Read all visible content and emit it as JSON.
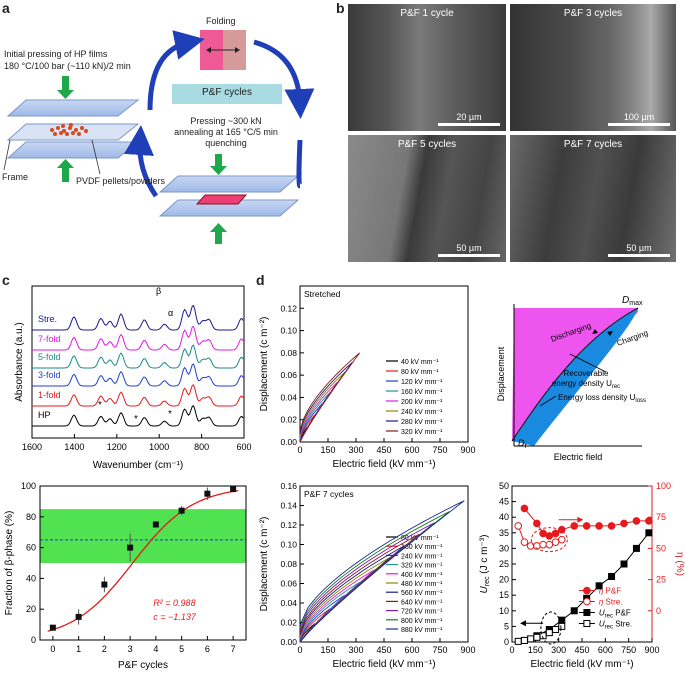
{
  "panel_labels": {
    "a": "a",
    "b": "b",
    "c": "c",
    "d": "d"
  },
  "panel_a": {
    "initial_pressing_line1": "Initial pressing of HP films",
    "initial_pressing_line2": "180 °C/100 bar (~110 kN)/2 min",
    "folding": "Folding",
    "pf_cycles": "P&F cycles",
    "pressing_line1": "Pressing ~300 kN",
    "pressing_line2": "annealing at 165 °C/5 min",
    "pressing_line3": "quenching",
    "frame": "Frame",
    "pvdf": "PVDF pellets/powders"
  },
  "panel_b": {
    "images": [
      {
        "label": "P&F 1 cycle",
        "scale": "20 µm"
      },
      {
        "label": "P&F 3 cycles",
        "scale": "100 µm"
      },
      {
        "label": "P&F 5 cycles",
        "scale": "50 µm"
      },
      {
        "label": "P&F 7 cycles",
        "scale": "50 µm"
      }
    ]
  },
  "panel_c_ftir": {
    "chart_data": {
      "type": "line",
      "xlabel": "Wavenumber (cm⁻¹)",
      "ylabel": "Absorbance (a.u.)",
      "xlim": [
        1600,
        600
      ],
      "x_ticks": [
        "1600",
        "1400",
        "1200",
        "1000",
        "800",
        "600"
      ],
      "series": [
        {
          "name": "HP",
          "color": "#000000"
        },
        {
          "name": "1-fold",
          "color": "#e41a1c"
        },
        {
          "name": "3-fold",
          "color": "#1f3fd1"
        },
        {
          "name": "5-fold",
          "color": "#1a8a8a"
        },
        {
          "name": "7-fold",
          "color": "#e31ae3"
        },
        {
          "name": "Stre.",
          "color": "#1a1a8c"
        }
      ],
      "annotations": [
        "β",
        "α",
        "*",
        "*",
        "*"
      ]
    }
  },
  "panel_c_fraction": {
    "chart_data": {
      "type": "scatter",
      "xlabel": "P&F cycles",
      "ylabel": "Fraction of β-phase (%)",
      "xlim": [
        -0.5,
        7.5
      ],
      "ylim": [
        0,
        100
      ],
      "x_ticks": [
        "0",
        "1",
        "2",
        "3",
        "4",
        "5",
        "6",
        "7"
      ],
      "y_ticks": [
        "0",
        "20",
        "40",
        "60",
        "80",
        "100"
      ],
      "x": [
        0,
        1,
        2,
        3,
        4,
        5,
        6,
        7
      ],
      "y": [
        8,
        15,
        36,
        60,
        75,
        84,
        95,
        98
      ],
      "fit_line": "red",
      "band": [
        50,
        85
      ],
      "band_color": "#33dd33",
      "dashed_line": 65,
      "annotation_r2": "R² = 0.988",
      "annotation_c": "c = −1.137"
    }
  },
  "panel_d_stretched": {
    "chart_data": {
      "type": "line",
      "title": "Stretched",
      "xlabel": "Electric field (kV mm⁻¹)",
      "ylabel": "Displacement (c m⁻²)",
      "xlim": [
        0,
        900
      ],
      "ylim": [
        0,
        0.14
      ],
      "x_ticks": [
        "0",
        "150",
        "300",
        "450",
        "600",
        "750",
        "900"
      ],
      "y_ticks": [
        "0.00",
        "0.02",
        "0.04",
        "0.06",
        "0.08",
        "0.10",
        "0.12"
      ],
      "legend": [
        {
          "name": "40 kV mm⁻¹",
          "color": "#000000"
        },
        {
          "name": "80 kV mm⁻¹",
          "color": "#e41a1c"
        },
        {
          "name": "120 kV mm⁻¹",
          "color": "#1f3fd1"
        },
        {
          "name": "160 kV mm⁻¹",
          "color": "#1a9a9a"
        },
        {
          "name": "200 kV mm⁻¹",
          "color": "#e31ae3"
        },
        {
          "name": "240 kV mm⁻¹",
          "color": "#8a8a00"
        },
        {
          "name": "280 kV mm⁻¹",
          "color": "#1a1a8c"
        },
        {
          "name": "320 kV mm⁻¹",
          "color": "#8c1a1a"
        }
      ],
      "max_field": 320,
      "max_d": 0.08
    }
  },
  "panel_d_schematic": {
    "ylabel": "Displacement",
    "xlabel": "Electric field",
    "dmax": "D",
    "dmax_sub": "max",
    "dr": "D",
    "dr_sub": "r",
    "discharging": "Discharging",
    "charging": "Charging",
    "recoverable_line1": "Recoverable",
    "recoverable_line2": "energy density U",
    "recoverable_sub": "rec",
    "loss": "Energy loss density U",
    "loss_sub": "loss"
  },
  "panel_d_pf7": {
    "chart_data": {
      "type": "line",
      "title": "P&F 7 cycles",
      "xlabel": "Electric field (kV mm⁻¹)",
      "ylabel": "Displacement (c m⁻²)",
      "xlim": [
        0,
        900
      ],
      "ylim": [
        0,
        0.16
      ],
      "x_ticks": [
        "0",
        "150",
        "300",
        "450",
        "600",
        "750",
        "900"
      ],
      "y_ticks": [
        "0.00",
        "0.02",
        "0.04",
        "0.06",
        "0.08",
        "0.10",
        "0.12",
        "0.14",
        "0.16"
      ],
      "legend": [
        {
          "name": "80 kV mm⁻¹",
          "color": "#000000"
        },
        {
          "name": "160 kV mm⁻¹",
          "color": "#e41a1c"
        },
        {
          "name": "240 kV mm⁻¹",
          "color": "#1f3fd1"
        },
        {
          "name": "320 kV mm⁻¹",
          "color": "#1a9a9a"
        },
        {
          "name": "400 kV mm⁻¹",
          "color": "#e31ae3"
        },
        {
          "name": "480 kV mm⁻¹",
          "color": "#8a8a00"
        },
        {
          "name": "560 kV mm⁻¹",
          "color": "#1a1a8c"
        },
        {
          "name": "640 kV mm⁻¹",
          "color": "#8c1a1a"
        },
        {
          "name": "720 kV mm⁻¹",
          "color": "#7a1ab8"
        },
        {
          "name": "800 kV mm⁻¹",
          "color": "#1a7a1a"
        },
        {
          "name": "880 kV mm⁻¹",
          "color": "#1a2a9a"
        }
      ],
      "max_field": 880,
      "max_d": 0.145
    }
  },
  "panel_d_energy": {
    "chart_data": {
      "type": "scatter",
      "xlabel": "Electric field (kV mm⁻¹)",
      "ylabel_left": "U",
      "ylabel_left_sub": "rec",
      "ylabel_left_unit": " (J c m⁻³)",
      "ylabel_right": "η (%)",
      "xlim": [
        0,
        900
      ],
      "ylim_left": [
        0,
        50
      ],
      "ylim_right": [
        -25,
        100
      ],
      "x_ticks": [
        "0",
        "150",
        "300",
        "450",
        "600",
        "750",
        "900"
      ],
      "y_ticks_left": [
        "0",
        "5",
        "10",
        "15",
        "20",
        "25",
        "30",
        "35",
        "40",
        "45",
        "50"
      ],
      "y_ticks_right": [
        "0",
        "25",
        "50",
        "75",
        "100"
      ],
      "series": [
        {
          "name": "η P&F",
          "axis": "right",
          "color": "#e41a1c",
          "marker": "filled-circle",
          "x": [
            80,
            160,
            200,
            240,
            280,
            320,
            400,
            480,
            560,
            640,
            720,
            800,
            880
          ],
          "y": [
            82,
            70,
            62,
            60,
            62,
            65,
            68,
            68,
            68,
            68,
            70,
            72,
            72
          ]
        },
        {
          "name": "η Stre.",
          "axis": "right",
          "color": "#e41a1c",
          "marker": "open-circle",
          "x": [
            40,
            80,
            120,
            160,
            200,
            240,
            280,
            320
          ],
          "y": [
            68,
            55,
            52,
            52,
            53,
            53,
            55,
            57
          ]
        },
        {
          "name": "U P&F",
          "axis": "left",
          "color": "#000000",
          "marker": "filled-square",
          "x": [
            80,
            160,
            240,
            320,
            400,
            480,
            560,
            640,
            720,
            800,
            880
          ],
          "y": [
            0.5,
            2,
            4,
            7,
            10,
            14,
            18,
            21,
            25,
            30,
            35
          ]
        },
        {
          "name": "U Stre.",
          "axis": "left",
          "color": "#000000",
          "marker": "open-square",
          "x": [
            40,
            80,
            120,
            160,
            200,
            240,
            280,
            320
          ],
          "y": [
            0.2,
            0.5,
            1,
            1.5,
            2,
            3,
            4,
            5
          ]
        }
      ],
      "legend": [
        {
          "sym": "η",
          "text": " P&F"
        },
        {
          "sym": "η",
          "text": " Stre."
        },
        {
          "sym": "U",
          "sub": "rec",
          "text": " P&F"
        },
        {
          "sym": "U",
          "sub": "rec",
          "text": " Stre."
        }
      ]
    }
  }
}
